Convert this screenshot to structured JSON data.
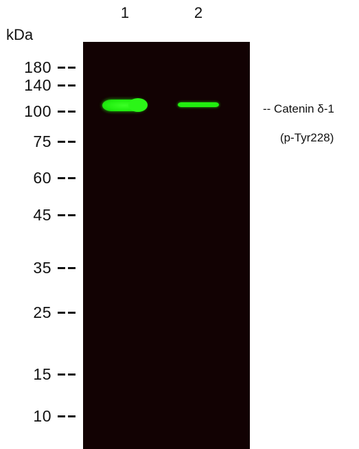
{
  "lanes": [
    "1",
    "2"
  ],
  "unit": "kDa",
  "markers": [
    "180",
    "140",
    "100",
    "75",
    "60",
    "45",
    "35",
    "25",
    "15",
    "10"
  ],
  "target": {
    "name": "-- Catenin δ-1",
    "site": "(p-Tyr228)"
  },
  "colors": {
    "membrane": "#120203",
    "band": "#21ef0f",
    "text": "#111111"
  }
}
